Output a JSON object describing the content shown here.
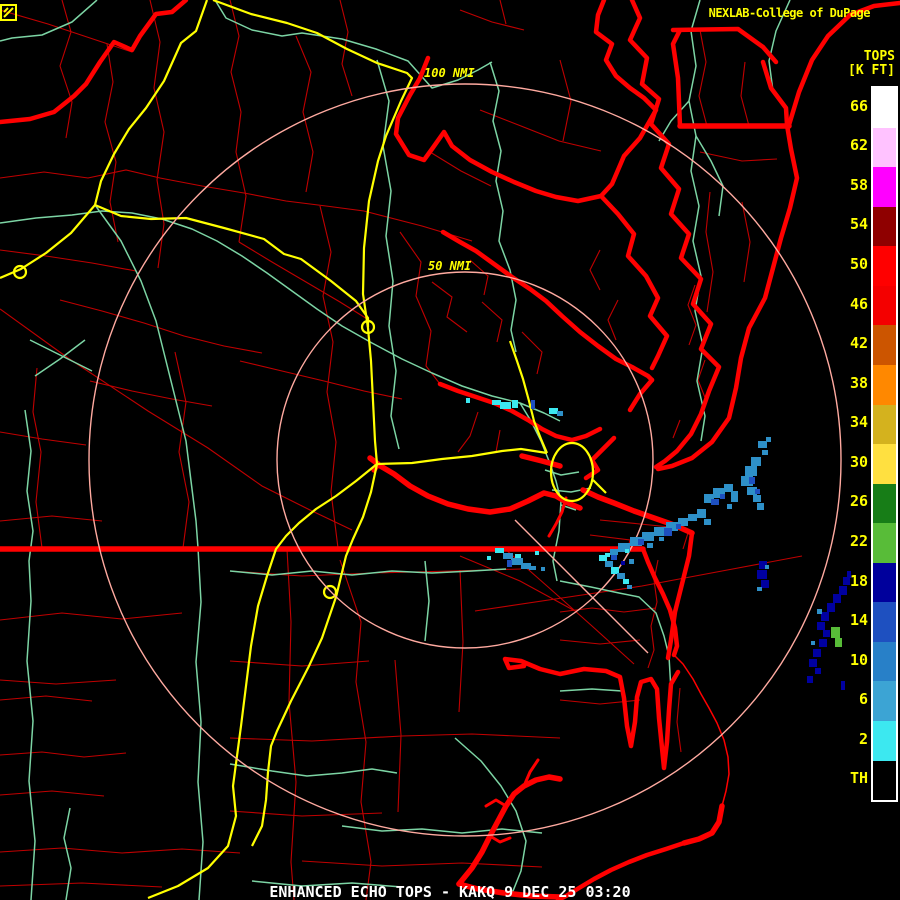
{
  "brand": {
    "text": "NEXLAB-College of DuPage"
  },
  "legend": {
    "title": "TOPS",
    "units": "[K FT]",
    "items": [
      {
        "label": "66",
        "color": "#FFFFFF"
      },
      {
        "label": "62",
        "color": "#FFC2FF"
      },
      {
        "label": "58",
        "color": "#FF00FF"
      },
      {
        "label": "54",
        "color": "#8F0000"
      },
      {
        "label": "50",
        "color": "#FF0000"
      },
      {
        "label": "46",
        "color": "#F40000"
      },
      {
        "label": "42",
        "color": "#CC5500"
      },
      {
        "label": "38",
        "color": "#FF8800"
      },
      {
        "label": "34",
        "color": "#D4B21E"
      },
      {
        "label": "30",
        "color": "#FFE040"
      },
      {
        "label": "26",
        "color": "#177D17"
      },
      {
        "label": "22",
        "color": "#58BC38"
      },
      {
        "label": "18",
        "color": "#00009C"
      },
      {
        "label": "14",
        "color": "#1E50C0"
      },
      {
        "label": "10",
        "color": "#2880C8"
      },
      {
        "label": "6",
        "color": "#3CA4D4"
      },
      {
        "label": "2",
        "color": "#3CE8F0"
      },
      {
        "label": "TH",
        "color": "#000000"
      }
    ]
  },
  "rings": {
    "outer": "100 NMI",
    "inner": "50 NMI"
  },
  "status": {
    "text": "ENHANCED ECHO TOPS - KAKQ 9 DEC 25 03:20"
  },
  "echoes": [
    {
      "region": "patches near Newport News / lower peninsula",
      "tops_kft": "2-14"
    },
    {
      "region": "broken band offshore, southwest to northeast",
      "tops_kft": "10-14"
    },
    {
      "region": "patches along VA/NC border and coast",
      "tops_kft": "2-14"
    },
    {
      "region": "far offshore southeast streaks",
      "tops_kft": "14-22"
    }
  ],
  "colors": {
    "background": "#000000",
    "water_border": "#FF0000",
    "county": "#C00000",
    "highway_yellow": "#FFFF00",
    "road_teal": "#7CD4A4",
    "range_ring": "#FFAAA0",
    "label_yellow": "#FFFF00",
    "status_text": "#FFFFFF",
    "echo_light_blue": "#2E90C8",
    "echo_royal_blue": "#1E50C0",
    "echo_navy": "#0000A0",
    "echo_cyan": "#3CE8F0",
    "echo_green": "#58BC38"
  }
}
